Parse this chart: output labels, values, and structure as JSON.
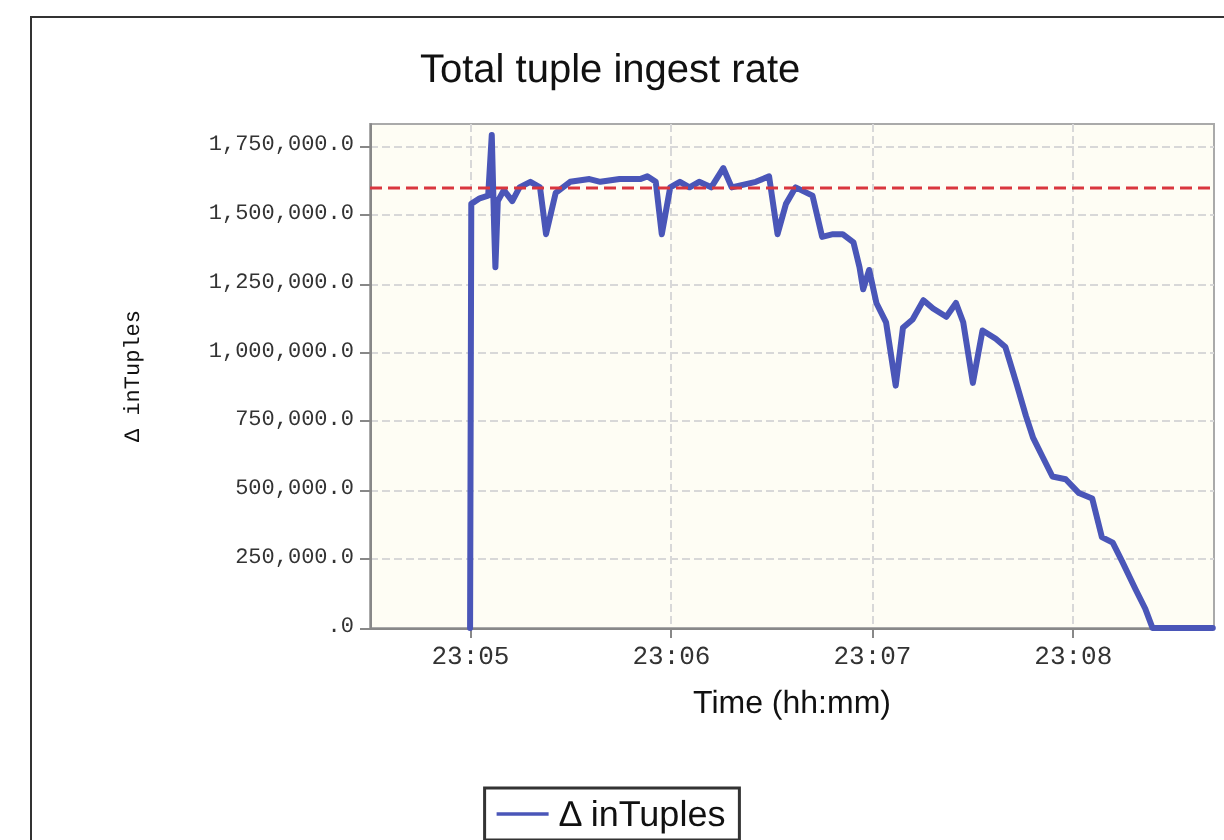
{
  "chart_data": {
    "type": "line",
    "title": "Total tuple ingest rate",
    "xlabel": "Time (hh:mm)",
    "ylabel": "Δ inTuples",
    "xlim": [
      23.075,
      23.145
    ],
    "xticks": [
      {
        "value": 23.08333,
        "label": "23:05"
      },
      {
        "value": 23.1,
        "label": "23:06"
      },
      {
        "value": 23.11667,
        "label": "23:07"
      },
      {
        "value": 23.13333,
        "label": "23:08"
      }
    ],
    "ylim": [
      0,
      1830000
    ],
    "yticks": [
      {
        "value": 0,
        "label": ".0"
      },
      {
        "value": 250000,
        "label": "250,000.0"
      },
      {
        "value": 500000,
        "label": "500,000.0"
      },
      {
        "value": 750000,
        "label": "750,000.0"
      },
      {
        "value": 1000000,
        "label": "1,000,000.0"
      },
      {
        "value": 1250000,
        "label": "1,250,000.0"
      },
      {
        "value": 1500000,
        "label": "1,500,000.0"
      },
      {
        "value": 1750000,
        "label": "1,750,000.0"
      }
    ],
    "grid": true,
    "legend": "bottom",
    "marker": "none",
    "line_style": "solid",
    "ref_lines": [
      {
        "axis": "y",
        "value": 1600000,
        "color": "#d9363e",
        "line_style": "dashed"
      }
    ],
    "series": [
      {
        "name": "Δ inTuples",
        "color": "#4a56b8",
        "x": [
          23.0833,
          23.0834,
          23.0841,
          23.0848,
          23.0851,
          23.0853,
          23.0854,
          23.0856,
          23.0861,
          23.0868,
          23.0874,
          23.0883,
          23.0891,
          23.0896,
          23.0904,
          23.0916,
          23.0932,
          23.0941,
          23.0957,
          23.0974,
          23.098,
          23.0987,
          23.0992,
          23.0999,
          23.1007,
          23.1015,
          23.1023,
          23.1033,
          23.1043,
          23.105,
          23.106,
          23.107,
          23.1081,
          23.1088,
          23.1095,
          23.1103,
          23.1117,
          23.1125,
          23.1134,
          23.1142,
          23.1151,
          23.1156,
          23.1159,
          23.1164,
          23.117,
          23.1178,
          23.1186,
          23.1192,
          23.12,
          23.1209,
          23.1217,
          23.1228,
          23.1236,
          23.1242,
          23.125,
          23.1258,
          23.1269,
          23.1277,
          23.1286,
          23.1294,
          23.13,
          23.1308,
          23.1316,
          23.1327,
          23.1338,
          23.1349,
          23.1357,
          23.1366,
          23.1374,
          23.1385,
          23.1393,
          23.1399,
          23.1449
        ],
        "values": [
          0,
          1540000,
          1560000,
          1570000,
          1790000,
          1450000,
          1310000,
          1550000,
          1590000,
          1550000,
          1600000,
          1620000,
          1600000,
          1430000,
          1580000,
          1620000,
          1630000,
          1620000,
          1630000,
          1630000,
          1640000,
          1620000,
          1430000,
          1600000,
          1620000,
          1600000,
          1620000,
          1600000,
          1670000,
          1600000,
          1610000,
          1620000,
          1640000,
          1430000,
          1540000,
          1600000,
          1570000,
          1420000,
          1430000,
          1430000,
          1400000,
          1310000,
          1230000,
          1300000,
          1180000,
          1110000,
          880000,
          1090000,
          1120000,
          1190000,
          1160000,
          1130000,
          1180000,
          1110000,
          890000,
          1080000,
          1050000,
          1020000,
          890000,
          770000,
          690000,
          620000,
          550000,
          540000,
          490000,
          470000,
          330000,
          310000,
          240000,
          140000,
          70000,
          0,
          0
        ]
      }
    ]
  }
}
